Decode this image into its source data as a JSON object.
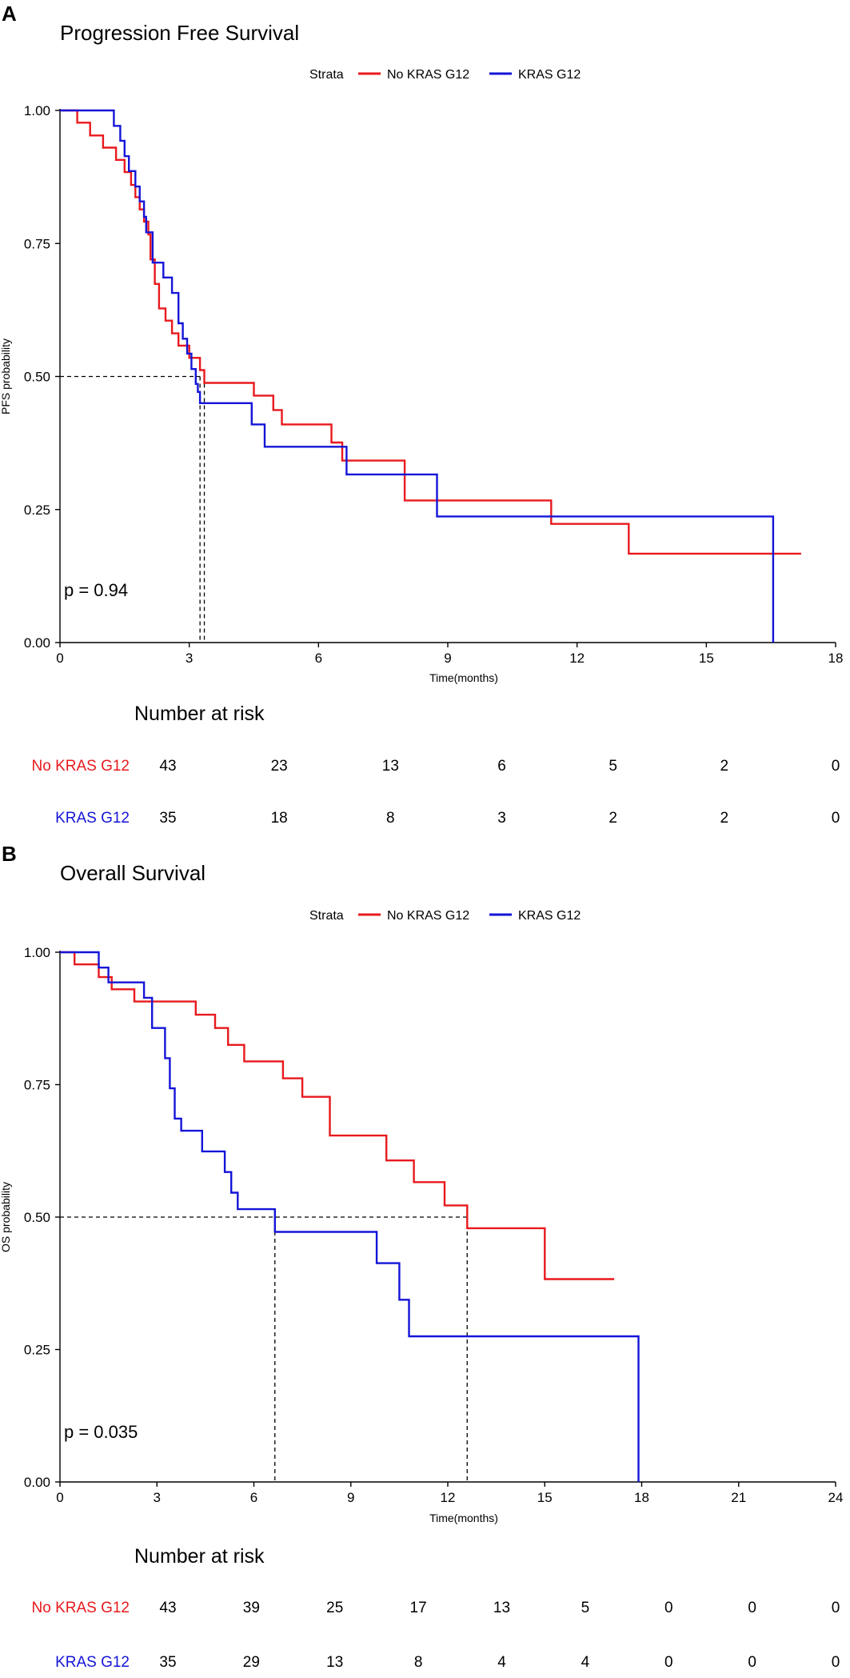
{
  "colors": {
    "no_kras": "#e8191d",
    "kras": "#1414d8",
    "axis": "#000000"
  },
  "chart_data": [
    {
      "type": "line",
      "panel_label": "A",
      "title": "Progression Free Survival",
      "xlabel": "Time(months)",
      "ylabel": "PFS probability",
      "xlim": [
        0,
        18
      ],
      "ylim": [
        0,
        1
      ],
      "xticks": [
        0,
        3,
        6,
        9,
        12,
        15,
        18
      ],
      "yticks": [
        0,
        0.25,
        0.5,
        0.75,
        1
      ],
      "ytick_labels": [
        "0.00",
        "0.25",
        "0.50",
        "0.75",
        "1.00"
      ],
      "legend": {
        "title": "Strata",
        "placement": "top",
        "entries": [
          "No KRAS G12",
          "KRAS G12"
        ]
      },
      "p_value": "p = 0.94",
      "median_lines": [
        {
          "y": 0.5,
          "x_end": 3.25,
          "x_drops": [
            3.25,
            3.35
          ]
        }
      ],
      "series": [
        {
          "name": "No KRAS G12",
          "color_key": "no_kras",
          "x": [
            0,
            0.4,
            0.7,
            1.0,
            1.3,
            1.5,
            1.65,
            1.75,
            1.85,
            1.95,
            2.05,
            2.1,
            2.2,
            2.3,
            2.45,
            2.6,
            2.75,
            3.0,
            3.25,
            3.35,
            4.5,
            4.95,
            5.15,
            5.35,
            6.3,
            6.55,
            8.0,
            11.4,
            13.2,
            17.2
          ],
          "y": [
            1,
            0.977,
            0.953,
            0.93,
            0.907,
            0.884,
            0.86,
            0.837,
            0.814,
            0.791,
            0.767,
            0.72,
            0.674,
            0.628,
            0.605,
            0.581,
            0.558,
            0.535,
            0.512,
            0.488,
            0.464,
            0.437,
            0.41,
            0.41,
            0.376,
            0.342,
            0.267,
            0.223,
            0.167,
            0.167
          ]
        },
        {
          "name": "KRAS G12",
          "color_key": "kras",
          "x": [
            0,
            1.25,
            1.4,
            1.5,
            1.6,
            1.75,
            1.85,
            1.95,
            2.0,
            2.15,
            2.4,
            2.6,
            2.75,
            2.85,
            2.95,
            3.05,
            3.15,
            3.2,
            3.25,
            4.45,
            4.75,
            6.65,
            8.75,
            16.55
          ],
          "y": [
            1,
            0.971,
            0.943,
            0.914,
            0.886,
            0.857,
            0.829,
            0.8,
            0.771,
            0.714,
            0.686,
            0.657,
            0.6,
            0.571,
            0.543,
            0.514,
            0.486,
            0.471,
            0.45,
            0.41,
            0.368,
            0.316,
            0.237,
            0
          ]
        }
      ],
      "risk_table": {
        "title": "Number at risk",
        "rows": [
          {
            "label": "No KRAS G12",
            "color_key": "no_kras",
            "values": [
              "43",
              "23",
              "13",
              "6",
              "5",
              "2",
              "0"
            ]
          },
          {
            "label": "KRAS G12",
            "color_key": "kras",
            "values": [
              "35",
              "18",
              "8",
              "3",
              "2",
              "2",
              "0"
            ]
          }
        ]
      }
    },
    {
      "type": "line",
      "panel_label": "B",
      "title": "Overall Survival",
      "xlabel": "Time(months)",
      "ylabel": "OS probability",
      "xlim": [
        0,
        24
      ],
      "ylim": [
        0,
        1
      ],
      "xticks": [
        0,
        3,
        6,
        9,
        12,
        15,
        18,
        21,
        24
      ],
      "yticks": [
        0,
        0.25,
        0.5,
        0.75,
        1
      ],
      "ytick_labels": [
        "0.00",
        "0.25",
        "0.50",
        "0.75",
        "1.00"
      ],
      "legend": {
        "title": "Strata",
        "placement": "top",
        "entries": [
          "No KRAS G12",
          "KRAS G12"
        ]
      },
      "p_value": "p = 0.035",
      "median_lines": [
        {
          "y": 0.5,
          "x_end": 12.6,
          "x_drops": [
            6.65,
            12.6
          ]
        }
      ],
      "series": [
        {
          "name": "No KRAS G12",
          "color_key": "no_kras",
          "x": [
            0,
            0.45,
            1.2,
            1.6,
            2.3,
            2.6,
            4.2,
            4.8,
            5.2,
            5.7,
            6.9,
            7.5,
            8.35,
            10.1,
            10.95,
            11.9,
            12.6,
            15.0,
            17.15
          ],
          "y": [
            1,
            0.977,
            0.953,
            0.93,
            0.907,
            0.907,
            0.882,
            0.857,
            0.825,
            0.794,
            0.762,
            0.727,
            0.654,
            0.607,
            0.566,
            0.522,
            0.479,
            0.383,
            0.383
          ]
        },
        {
          "name": "KRAS G12",
          "color_key": "kras",
          "x": [
            0,
            1.2,
            1.5,
            2.6,
            2.85,
            3.25,
            3.4,
            3.55,
            3.75,
            4.4,
            5.1,
            5.3,
            5.5,
            6.65,
            9.8,
            10.5,
            10.8,
            17.9
          ],
          "y": [
            1,
            0.971,
            0.943,
            0.914,
            0.857,
            0.8,
            0.743,
            0.686,
            0.663,
            0.624,
            0.585,
            0.546,
            0.515,
            0.472,
            0.413,
            0.344,
            0.275,
            0
          ]
        }
      ],
      "risk_table": {
        "title": "Number at risk",
        "rows": [
          {
            "label": "No KRAS G12",
            "color_key": "no_kras",
            "values": [
              "43",
              "39",
              "25",
              "17",
              "13",
              "5",
              "0",
              "0",
              "0"
            ]
          },
          {
            "label": "KRAS G12",
            "color_key": "kras",
            "values": [
              "35",
              "29",
              "13",
              "8",
              "4",
              "4",
              "0",
              "0",
              "0"
            ]
          }
        ]
      }
    }
  ]
}
